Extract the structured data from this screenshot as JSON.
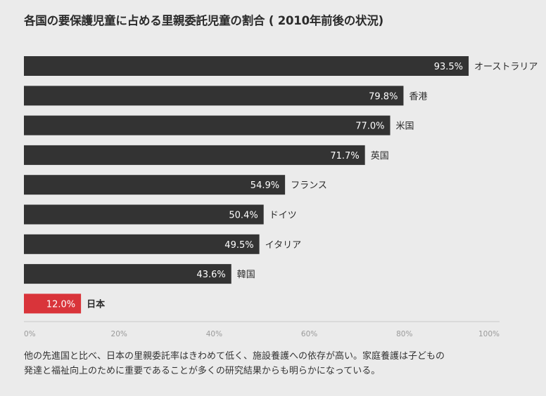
{
  "title": "各国の要保護児童に占める里親委託児童の割合 ( 2010年前後の状況)",
  "chart_data": {
    "type": "bar",
    "orientation": "horizontal",
    "title": "各国の要保護児童に占める里親委託児童の割合 ( 2010年前後の状況)",
    "categories": [
      "オーストラリア",
      "香港",
      "米国",
      "英国",
      "フランス",
      "ドイツ",
      "イタリア",
      "韓国",
      "日本"
    ],
    "values": [
      93.5,
      79.8,
      77.0,
      71.7,
      54.9,
      50.4,
      49.5,
      43.6,
      12.0
    ],
    "value_labels": [
      "93.5%",
      "79.8%",
      "77.0%",
      "71.7%",
      "54.9%",
      "50.4%",
      "49.5%",
      "43.6%",
      "12.0%"
    ],
    "highlight_category": "日本",
    "xlim": [
      0,
      100
    ],
    "xticks": [
      "0%",
      "20%",
      "40%",
      "60%",
      "80%",
      "100%"
    ],
    "grid": false,
    "colors": {
      "bar": "#333333",
      "highlight": "#d9343a",
      "background": "#ebebeb"
    }
  },
  "caption": [
    "他の先進国と比べ、日本の里親委託率はきわめて低く、施設養護への依存が高い。家庭養護は子どもの",
    "発達と福祉向上のために重要であることが多くの研究結果からも明らかになっている。"
  ]
}
